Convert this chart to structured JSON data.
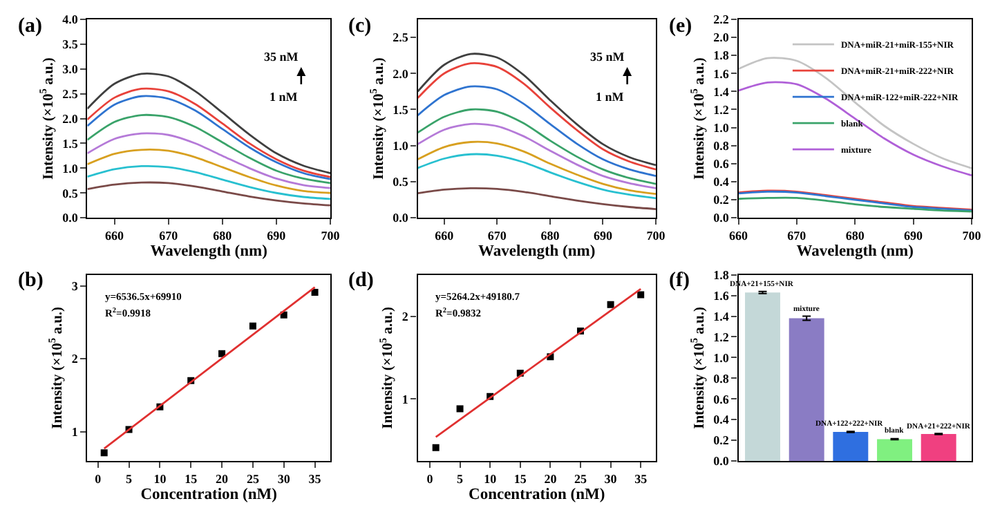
{
  "chart_data": [
    {
      "type": "line",
      "title": "(a)",
      "xlabel": "Wavelength (nm)",
      "ylabel": "Intensity (×10$^{5}$ a.u.)",
      "x": [
        655,
        660,
        665,
        670,
        675,
        680,
        685,
        690,
        695,
        700
      ],
      "series": [
        {
          "color": "#404040",
          "values": [
            2.2,
            2.7,
            2.9,
            2.85,
            2.55,
            2.12,
            1.68,
            1.3,
            1.05,
            0.9
          ]
        },
        {
          "color": "#e8423a",
          "values": [
            1.98,
            2.42,
            2.6,
            2.55,
            2.29,
            1.9,
            1.5,
            1.18,
            0.95,
            0.82
          ]
        },
        {
          "color": "#2f74d0",
          "values": [
            1.85,
            2.28,
            2.45,
            2.4,
            2.16,
            1.79,
            1.42,
            1.12,
            0.9,
            0.78
          ]
        },
        {
          "color": "#3aa36a",
          "values": [
            1.57,
            1.93,
            2.07,
            2.03,
            1.83,
            1.52,
            1.21,
            0.95,
            0.79,
            0.7
          ]
        },
        {
          "color": "#b57ad8",
          "values": [
            1.3,
            1.59,
            1.7,
            1.67,
            1.5,
            1.25,
            1.0,
            0.79,
            0.66,
            0.6
          ]
        },
        {
          "color": "#d8a020",
          "values": [
            1.08,
            1.29,
            1.37,
            1.35,
            1.22,
            1.02,
            0.82,
            0.65,
            0.54,
            0.5
          ]
        },
        {
          "color": "#28c0d0",
          "values": [
            0.83,
            0.98,
            1.04,
            1.02,
            0.92,
            0.77,
            0.62,
            0.5,
            0.42,
            0.38
          ]
        },
        {
          "color": "#7a4a48",
          "values": [
            0.58,
            0.67,
            0.71,
            0.7,
            0.63,
            0.53,
            0.43,
            0.35,
            0.29,
            0.25
          ]
        }
      ],
      "xlim": [
        655,
        700
      ],
      "xticks": [
        660,
        670,
        680,
        690,
        700
      ],
      "ylim": [
        0,
        4
      ],
      "yticks": [
        {
          "value": 0,
          "label": "0.0"
        },
        0.5,
        {
          "value": 1,
          "label": "1.0"
        },
        1.5,
        {
          "value": 2,
          "label": "2.0"
        },
        2.5,
        {
          "value": 3,
          "label": "3.0"
        },
        3.5,
        {
          "value": 4,
          "label": "4.0"
        }
      ],
      "annotations": [
        "35 nM",
        "1 nM"
      ]
    },
    {
      "type": "scatter",
      "title": "(b)",
      "xlabel": "Concentration (nM)",
      "ylabel": "Intensity (×10$^{5}$ a.u.)",
      "series": [
        {
          "type": "scatter",
          "marker": "square",
          "color": "#000000",
          "x": [
            1,
            5,
            10,
            15,
            20,
            25,
            30,
            35
          ],
          "values": [
            0.71,
            1.03,
            1.34,
            1.7,
            2.07,
            2.45,
            2.6,
            2.91
          ]
        },
        {
          "type": "line",
          "marker": "none",
          "color": "#e03030",
          "x": [
            1,
            35
          ],
          "values": [
            0.77,
            2.98
          ]
        }
      ],
      "xlim": [
        -1.7,
        37.5
      ],
      "xticks": [
        0,
        5,
        10,
        15,
        20,
        25,
        30,
        35
      ],
      "ylim": [
        0.6,
        3.15
      ],
      "yticks": [
        1,
        2,
        3
      ],
      "annotations": [
        "y=6536.5x+69910",
        "R$^{2}$=0.9918"
      ]
    },
    {
      "type": "line",
      "title": "(c)",
      "xlabel": "Wavelength (nm)",
      "ylabel": "Intensity (×10$^{5}$ a.u.)",
      "x": [
        655,
        660,
        665,
        670,
        675,
        680,
        685,
        690,
        695,
        700
      ],
      "series": [
        {
          "color": "#404040",
          "values": [
            1.75,
            2.12,
            2.27,
            2.22,
            1.98,
            1.63,
            1.3,
            1.02,
            0.84,
            0.73
          ]
        },
        {
          "color": "#e8423a",
          "values": [
            1.66,
            2.0,
            2.14,
            2.09,
            1.86,
            1.53,
            1.22,
            0.95,
            0.78,
            0.67
          ]
        },
        {
          "color": "#2f74d0",
          "values": [
            1.42,
            1.7,
            1.82,
            1.78,
            1.58,
            1.3,
            1.03,
            0.81,
            0.67,
            0.58
          ]
        },
        {
          "color": "#3aa36a",
          "values": [
            1.18,
            1.4,
            1.5,
            1.47,
            1.31,
            1.07,
            0.85,
            0.67,
            0.55,
            0.47
          ]
        },
        {
          "color": "#b57ad8",
          "values": [
            1.02,
            1.22,
            1.3,
            1.27,
            1.13,
            0.93,
            0.74,
            0.58,
            0.48,
            0.41
          ]
        },
        {
          "color": "#d8a020",
          "values": [
            0.81,
            0.98,
            1.05,
            1.03,
            0.92,
            0.75,
            0.6,
            0.47,
            0.38,
            0.33
          ]
        },
        {
          "color": "#28c0d0",
          "values": [
            0.69,
            0.82,
            0.88,
            0.86,
            0.77,
            0.63,
            0.5,
            0.39,
            0.32,
            0.27
          ]
        },
        {
          "color": "#7a4a48",
          "values": [
            0.34,
            0.39,
            0.41,
            0.4,
            0.36,
            0.3,
            0.24,
            0.19,
            0.15,
            0.12
          ]
        }
      ],
      "xlim": [
        655,
        700
      ],
      "xticks": [
        660,
        670,
        680,
        690,
        700
      ],
      "ylim": [
        0,
        2.75
      ],
      "yticks": [
        {
          "value": 0,
          "label": "0.0"
        },
        0.5,
        {
          "value": 1,
          "label": "1.0"
        },
        1.5,
        {
          "value": 2,
          "label": "2.0"
        },
        2.5
      ],
      "annotations": [
        "35 nM",
        "1 nM"
      ]
    },
    {
      "type": "scatter",
      "title": "(d)",
      "xlabel": "Concentration (nM)",
      "ylabel": "Intensity (×10$^{5}$ a.u.)",
      "series": [
        {
          "type": "scatter",
          "marker": "square",
          "color": "#000000",
          "x": [
            1,
            5,
            10,
            15,
            20,
            25,
            30,
            35
          ],
          "values": [
            0.41,
            0.88,
            1.03,
            1.31,
            1.51,
            1.82,
            2.14,
            2.26
          ]
        },
        {
          "type": "line",
          "marker": "none",
          "color": "#e03030",
          "x": [
            1,
            35
          ],
          "values": [
            0.54,
            2.33
          ]
        }
      ],
      "xlim": [
        -2,
        37.5
      ],
      "xticks": [
        0,
        5,
        10,
        15,
        20,
        25,
        30,
        35
      ],
      "ylim": [
        0.25,
        2.5
      ],
      "yticks": [
        1,
        2
      ],
      "annotations": [
        "y=5264.2x+49180.7",
        "R$^{2}$=0.9832"
      ]
    },
    {
      "type": "line",
      "title": "(e)",
      "xlabel": "Wavelength (nm)",
      "ylabel": "Intensity (×10$^{5}$ a.u.)",
      "x": [
        660,
        665,
        670,
        675,
        680,
        685,
        690,
        695,
        700
      ],
      "legend": "top right",
      "series": [
        {
          "name": "DNA+miR-21+miR-155+NIR",
          "color": "#c4c4c4",
          "values": [
            1.65,
            1.77,
            1.74,
            1.55,
            1.28,
            1.02,
            0.82,
            0.66,
            0.55
          ]
        },
        {
          "name": "DNA+miR-21+miR-222+NIR",
          "color": "#e8423a",
          "values": [
            0.28,
            0.3,
            0.29,
            0.25,
            0.21,
            0.17,
            0.13,
            0.11,
            0.09
          ]
        },
        {
          "name": "DNA+miR-122+miR-222+NIR",
          "color": "#2f74d0",
          "values": [
            0.27,
            0.29,
            0.28,
            0.24,
            0.2,
            0.16,
            0.12,
            0.1,
            0.08
          ]
        },
        {
          "name": "blank",
          "color": "#3aa36a",
          "values": [
            0.21,
            0.22,
            0.22,
            0.19,
            0.15,
            0.12,
            0.1,
            0.08,
            0.07
          ]
        },
        {
          "name": "mixture",
          "color": "#b060d8",
          "values": [
            1.41,
            1.5,
            1.48,
            1.32,
            1.1,
            0.88,
            0.7,
            0.57,
            0.47
          ]
        }
      ],
      "xlim": [
        660,
        700
      ],
      "xticks": [
        660,
        670,
        680,
        690,
        700
      ],
      "ylim": [
        0,
        2.2
      ],
      "yticks": [
        {
          "value": 0,
          "label": "0.0"
        },
        0.2,
        0.4,
        0.6,
        0.8,
        {
          "value": 1,
          "label": "1.0"
        },
        1.2,
        1.4,
        1.6,
        1.8,
        {
          "value": 2,
          "label": "2.0"
        },
        2.2
      ]
    },
    {
      "type": "bar",
      "title": "(f)",
      "ylabel": "Intensity (×10$^{5}$ a.u.)",
      "categories": [
        "DNA+21+155+NIR",
        "mixture",
        "DNA+122+222+NIR",
        "blank",
        "DNA+21+222+NIR"
      ],
      "values": [
        1.63,
        1.38,
        0.28,
        0.21,
        0.26
      ],
      "errors": [
        0.01,
        0.02,
        0.005,
        0.005,
        0.005
      ],
      "colors": [
        "#c4d8d8",
        "#8a7cc4",
        "#2f6fe0",
        "#80f080",
        "#f04080"
      ],
      "ylim": [
        0,
        1.8
      ],
      "yticks": [
        {
          "value": 0,
          "label": "0.0"
        },
        0.2,
        0.4,
        0.6,
        0.8,
        {
          "value": 1,
          "label": "1.0"
        },
        1.2,
        1.4,
        1.6,
        1.8
      ]
    }
  ]
}
